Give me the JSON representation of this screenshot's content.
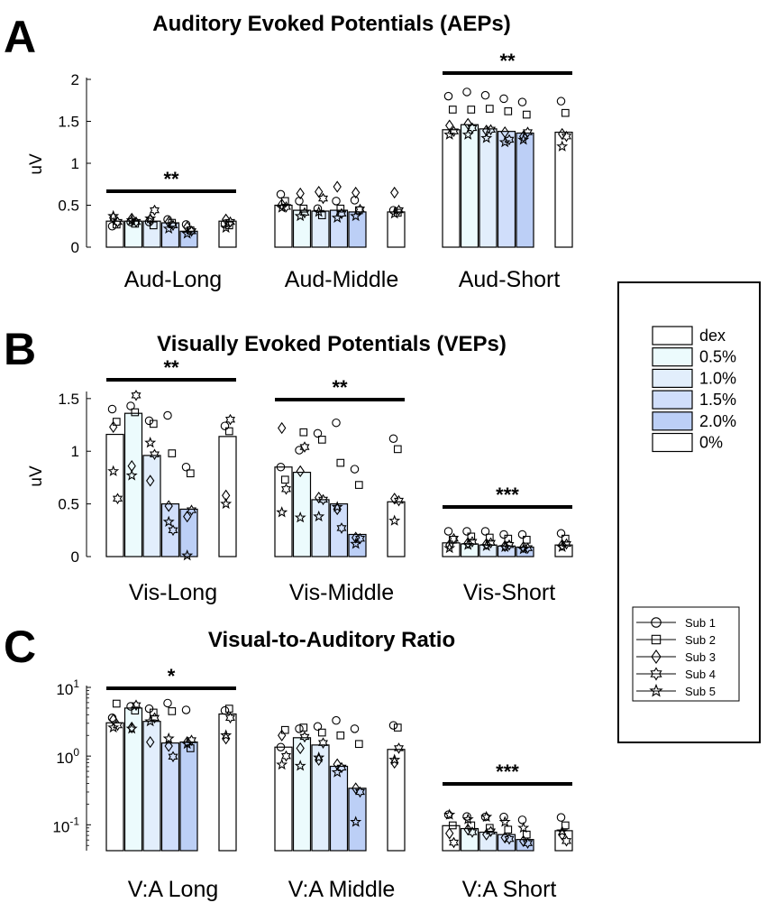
{
  "conditions": [
    {
      "label": "dex",
      "color": "#ffffff"
    },
    {
      "label": "0.5%",
      "color": "#ecfbfd"
    },
    {
      "label": "1.0%",
      "color": "#e2eefc"
    },
    {
      "label": "1.5%",
      "color": "#d0defb"
    },
    {
      "label": "2.0%",
      "color": "#bccff6"
    },
    {
      "label": "0%",
      "color": "#ffffff"
    }
  ],
  "subjects": [
    {
      "label": "Sub 1",
      "marker": "circle"
    },
    {
      "label": "Sub 2",
      "marker": "square"
    },
    {
      "label": "Sub 3",
      "marker": "diamond"
    },
    {
      "label": "Sub 4",
      "marker": "hexagram"
    },
    {
      "label": "Sub 5",
      "marker": "star"
    }
  ],
  "chart_data": [
    {
      "panel": "A",
      "type": "bar",
      "title": "Auditory Evoked Potentials (AEPs)",
      "ylabel": "uV",
      "yscale": "linear",
      "ylim": [
        0,
        2
      ],
      "yticks": [
        {
          "v": 0,
          "t": "0"
        },
        {
          "v": 0.5,
          "t": "0.5"
        },
        {
          "v": 1,
          "t": "1"
        },
        {
          "v": 1.5,
          "t": "1.5"
        },
        {
          "v": 2,
          "t": "2"
        }
      ],
      "groups": [
        {
          "label": "Aud-Long",
          "means": [
            0.31,
            0.31,
            0.31,
            0.29,
            0.19,
            0.31
          ],
          "sig": "**",
          "points": [
            [
              0.25,
              0.27,
              0.35,
              0.3,
              0.37
            ],
            [
              0.3,
              0.28,
              0.34,
              0.3,
              0.32
            ],
            [
              0.3,
              0.26,
              0.33,
              0.44,
              0.34
            ],
            [
              0.33,
              0.29,
              0.3,
              0.26,
              0.22
            ],
            [
              0.27,
              0.2,
              0.24,
              0.19,
              0.16
            ],
            [
              0.28,
              0.26,
              0.33,
              0.3,
              0.23
            ]
          ]
        },
        {
          "label": "Aud-Middle",
          "means": [
            0.5,
            0.44,
            0.43,
            0.44,
            0.42,
            0.42
          ],
          "sig": "",
          "points": [
            [
              0.63,
              0.55,
              0.51,
              0.48,
              0.47
            ],
            [
              0.55,
              0.46,
              0.64,
              0.41,
              0.37
            ],
            [
              0.46,
              0.38,
              0.66,
              0.58,
              0.42
            ],
            [
              0.55,
              0.46,
              0.72,
              0.4,
              0.35
            ],
            [
              0.56,
              0.44,
              0.65,
              0.45,
              0.37
            ],
            [
              0.44,
              0.41,
              0.65,
              0.44,
              0.4
            ]
          ]
        },
        {
          "label": "Aud-Short",
          "means": [
            1.4,
            1.46,
            1.41,
            1.38,
            1.36,
            1.37
          ],
          "sig": "**",
          "points": [
            [
              1.8,
              1.64,
              1.45,
              1.38,
              1.34
            ],
            [
              1.85,
              1.64,
              1.47,
              1.42,
              1.34
            ],
            [
              1.81,
              1.65,
              1.39,
              1.4,
              1.3
            ],
            [
              1.77,
              1.62,
              1.37,
              1.28,
              1.25
            ],
            [
              1.73,
              1.58,
              1.32,
              1.37,
              1.28
            ],
            [
              1.74,
              1.6,
              1.35,
              1.32,
              1.2
            ]
          ]
        }
      ]
    },
    {
      "panel": "B",
      "type": "bar",
      "title": "Visually Evoked Potentials (VEPs)",
      "ylabel": "uV",
      "yscale": "linear",
      "ylim": [
        0,
        1.55
      ],
      "yticks": [
        {
          "v": 0,
          "t": "0"
        },
        {
          "v": 0.5,
          "t": "0.5"
        },
        {
          "v": 1,
          "t": "1"
        },
        {
          "v": 1.5,
          "t": "1.5"
        }
      ],
      "groups": [
        {
          "label": "Vis-Long",
          "means": [
            1.16,
            1.36,
            0.96,
            0.5,
            0.45,
            1.14
          ],
          "sig": "**",
          "points": [
            [
              1.4,
              1.28,
              1.23,
              0.55,
              0.81
            ],
            [
              1.43,
              1.37,
              0.86,
              1.53,
              0.77
            ],
            [
              1.29,
              1.26,
              0.72,
              0.97,
              1.08
            ],
            [
              1.34,
              0.98,
              0.48,
              0.25,
              0.33
            ],
            [
              0.85,
              0.79,
              0.38,
              0.44,
              0.01
            ],
            [
              1.24,
              1.19,
              0.58,
              1.3,
              0.5
            ]
          ]
        },
        {
          "label": "Vis-Middle",
          "means": [
            0.85,
            0.8,
            0.54,
            0.5,
            0.21,
            0.52
          ],
          "sig": "**",
          "points": [
            [
              0.85,
              0.73,
              1.22,
              0.64,
              0.42
            ],
            [
              1.01,
              1.18,
              0.81,
              1.04,
              0.37
            ],
            [
              1.17,
              1.11,
              0.56,
              0.54,
              0.38
            ],
            [
              1.27,
              0.89,
              0.45,
              0.27,
              0.47
            ],
            [
              0.83,
              0.68,
              0.18,
              0.17,
              0.12
            ],
            [
              1.12,
              1.02,
              0.55,
              0.53,
              0.34
            ]
          ]
        },
        {
          "label": "Vis-Short",
          "means": [
            0.13,
            0.12,
            0.11,
            0.1,
            0.09,
            0.11
          ],
          "sig": "***",
          "points": [
            [
              0.24,
              0.16,
              0.11,
              0.17,
              0.08
            ],
            [
              0.24,
              0.19,
              0.13,
              0.14,
              0.11
            ],
            [
              0.24,
              0.18,
              0.12,
              0.13,
              0.1
            ],
            [
              0.21,
              0.17,
              0.1,
              0.11,
              0.09
            ],
            [
              0.21,
              0.16,
              0.09,
              0.08,
              0.07
            ],
            [
              0.22,
              0.17,
              0.11,
              0.12,
              0.09
            ]
          ]
        }
      ]
    },
    {
      "panel": "C",
      "type": "bar",
      "title": "Visual-to-Auditory Ratio",
      "ylabel": "",
      "yscale": "log",
      "ylim": [
        0.042,
        10
      ],
      "yticks": [
        {
          "v": 0.1,
          "base": "10",
          "exp": "-1"
        },
        {
          "v": 1,
          "base": "10",
          "exp": "0"
        },
        {
          "v": 10,
          "base": "10",
          "exp": "1"
        }
      ],
      "groups": [
        {
          "label": "V:A Long",
          "means": [
            3.05,
            5.0,
            3.2,
            1.55,
            1.6,
            4.1
          ],
          "sig": "*",
          "points": [
            [
              3.6,
              5.8,
              3.4,
              2.8,
              2.6
            ],
            [
              5.3,
              4.6,
              2.6,
              5.5,
              2.5
            ],
            [
              4.9,
              4.3,
              1.6,
              3.6,
              3.2
            ],
            [
              5.9,
              4.5,
              1.4,
              0.98,
              1.8
            ],
            [
              4.7,
              1.3,
              1.6,
              1.7,
              1.5
            ],
            [
              4.6,
              4.9,
              1.8,
              3.6,
              2.0
            ]
          ]
        },
        {
          "label": "V:A Middle",
          "means": [
            1.35,
            1.85,
            1.45,
            0.71,
            0.34,
            1.25
          ],
          "sig": "",
          "points": [
            [
              1.35,
              2.4,
              2.0,
              1.0,
              0.75
            ],
            [
              2.5,
              2.6,
              1.3,
              1.9,
              0.72
            ],
            [
              2.7,
              2.2,
              0.88,
              1.55,
              0.95
            ],
            [
              3.3,
              2.0,
              0.76,
              0.68,
              0.58
            ],
            [
              2.5,
              1.5,
              0.34,
              0.3,
              0.11
            ],
            [
              2.8,
              2.6,
              0.8,
              1.3,
              0.88
            ]
          ]
        },
        {
          "label": "V:A Short",
          "means": [
            0.097,
            0.088,
            0.078,
            0.072,
            0.061,
            0.082
          ],
          "sig": "***",
          "points": [
            [
              0.14,
              0.098,
              0.075,
              0.055,
              0.14
            ],
            [
              0.132,
              0.098,
              0.085,
              0.078,
              0.12
            ],
            [
              0.13,
              0.09,
              0.072,
              0.08,
              0.13
            ],
            [
              0.13,
              0.085,
              0.065,
              0.062,
              0.11
            ],
            [
              0.118,
              0.072,
              0.058,
              0.054,
              0.09
            ],
            [
              0.128,
              0.098,
              0.072,
              0.058,
              0.08
            ]
          ]
        }
      ]
    }
  ]
}
